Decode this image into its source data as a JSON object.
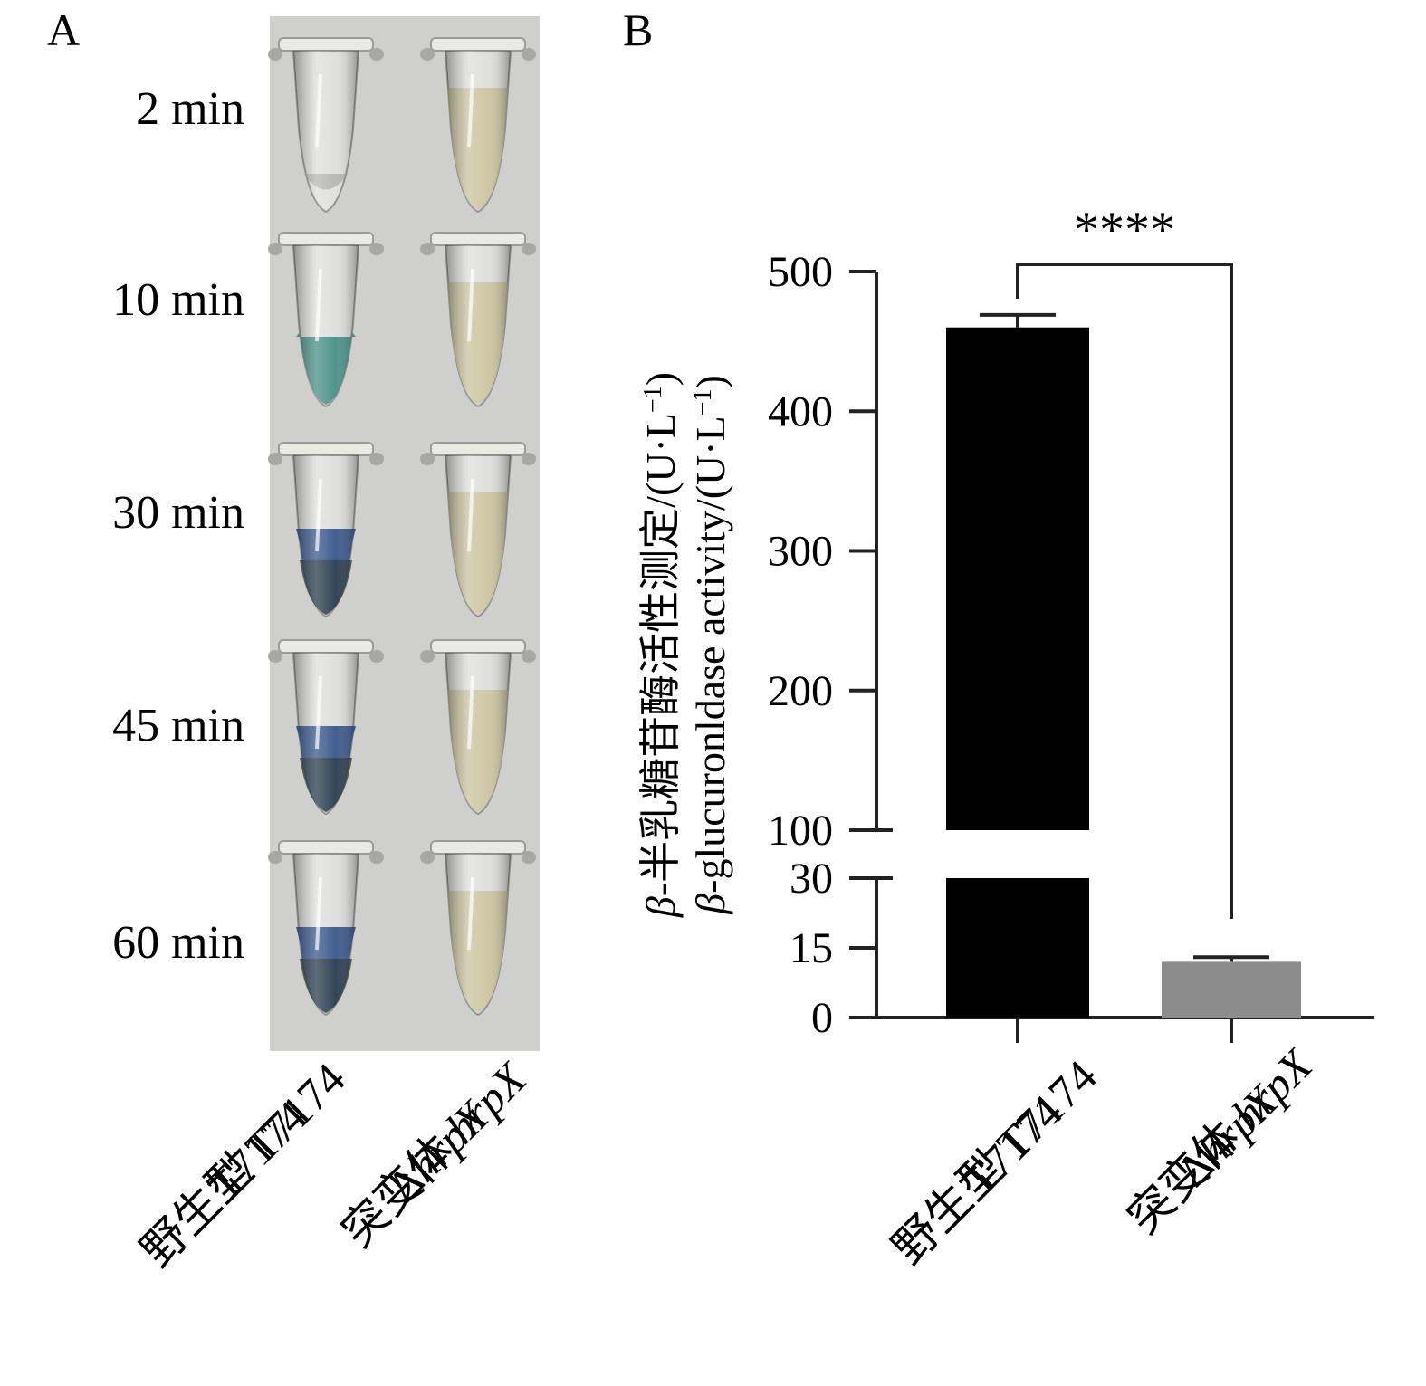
{
  "panel_a": {
    "letter": "A",
    "time_points": [
      "2 min",
      "10 min",
      "30 min",
      "45 min",
      "60 min"
    ],
    "strains": [
      {
        "line1": "野生型 T7174",
        "line2": "T7174",
        "tube_state": [
          "clear",
          "light-green",
          "blue",
          "blue",
          "blue"
        ]
      },
      {
        "line1_prefix": "突变体 ",
        "line1_italic": "hrpX",
        "line2_prefix": "Δ",
        "line2_italic": "hrpX",
        "tube_state": [
          "yellow",
          "yellow",
          "yellow",
          "yellow",
          "yellow"
        ]
      }
    ],
    "colors": {
      "panel_bg": "#cfcfcd",
      "tube_blue": "#2f4f86",
      "tube_green": "#3f8a80",
      "tube_yellow": "#c8bf95"
    }
  },
  "chart_data": {
    "panel_letter": "B",
    "type": "bar",
    "categories": [
      {
        "line1": "野生型 T7174",
        "line2": "T7174"
      },
      {
        "line1_prefix": "突变体 ",
        "line1_italic": "hrpX",
        "line2_prefix": "Δ",
        "line2_italic": "hrpX"
      }
    ],
    "values": [
      460,
      12
    ],
    "errors": [
      9,
      1
    ],
    "bar_colors": [
      "#000000",
      "#8c8c8c"
    ],
    "ylabel_cn": {
      "italic": "β",
      "text": "-半乳糖苷酶活性测定/(U·L",
      "sup": "−1",
      "close": ")"
    },
    "ylabel_en": {
      "italic": "β",
      "text": "-glucuronldase activity/(U·L",
      "sup": "−1",
      "close": ")"
    },
    "y_axis_break": [
      30,
      100
    ],
    "ylim_lower": [
      0,
      30
    ],
    "ylim_upper": [
      100,
      500
    ],
    "yticks_lower": [
      0,
      15,
      30
    ],
    "yticks_upper": [
      100,
      200,
      300,
      400,
      500
    ],
    "significance": "****",
    "grid": false
  }
}
